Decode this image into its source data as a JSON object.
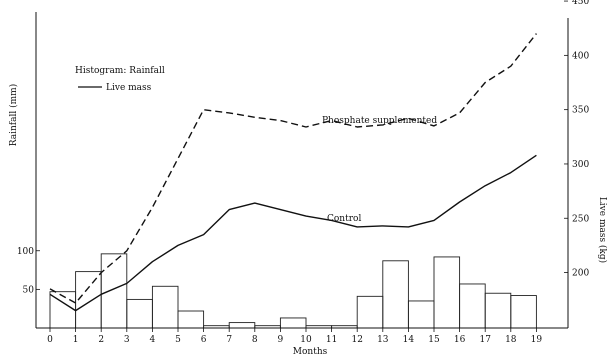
{
  "chart_data": {
    "type": "bar",
    "title": "",
    "xlabel": "Months",
    "ylabel_left": "Rainfall (mm)",
    "ylabel_right": "Live mass (kg)",
    "x": [
      0,
      1,
      2,
      3,
      4,
      5,
      6,
      7,
      8,
      9,
      10,
      11,
      12,
      13,
      14,
      15,
      16,
      17,
      18,
      19
    ],
    "x_tick_labels": [
      "0",
      "1",
      "2",
      "3",
      "4",
      "5",
      "6",
      "7",
      "8",
      "9",
      "10",
      "11",
      "12",
      "13",
      "14",
      "15",
      "16",
      "17",
      "18",
      "19"
    ],
    "left_ticks": [
      {
        "value": 50,
        "label": "50"
      },
      {
        "value": 100,
        "label": "100"
      }
    ],
    "right_ticks": [
      {
        "value": 200,
        "label": "200"
      },
      {
        "value": 250,
        "label": "250"
      },
      {
        "value": 300,
        "label": "300"
      },
      {
        "value": 350,
        "label": "350"
      },
      {
        "value": 400,
        "label": "400"
      },
      {
        "value": 450,
        "label": "450"
      }
    ],
    "left_ylim": [
      0,
      140
    ],
    "right_ylim": [
      150,
      450
    ],
    "rainfall": {
      "name": "Rainfall",
      "style": "histogram",
      "months": [
        0,
        1,
        2,
        3,
        4,
        5,
        6,
        7,
        8,
        9,
        10,
        11,
        12,
        13,
        14,
        15,
        16,
        17,
        18
      ],
      "values": [
        47,
        73,
        96,
        37,
        54,
        22,
        3,
        7,
        3,
        13,
        3,
        3,
        41,
        87,
        35,
        92,
        57,
        45,
        42
      ]
    },
    "series": [
      {
        "name": "Phosphate supplemented",
        "style": "dashed",
        "x": [
          0,
          1,
          2,
          3,
          4,
          5,
          6,
          7,
          8,
          9,
          10,
          11,
          12,
          13,
          14,
          15,
          16,
          17,
          18,
          19
        ],
        "values": [
          185,
          172,
          200,
          220,
          260,
          305,
          350,
          347,
          343,
          340,
          334,
          340,
          334,
          336,
          342,
          335,
          347,
          375,
          390,
          420
        ]
      },
      {
        "name": "Control",
        "style": "solid",
        "x": [
          0,
          1,
          2,
          3,
          4,
          5,
          6,
          7,
          8,
          9,
          10,
          11,
          12,
          13,
          14,
          15,
          16,
          17,
          18,
          19
        ],
        "values": [
          180,
          165,
          180,
          190,
          210,
          225,
          235,
          258,
          264,
          258,
          252,
          248,
          242,
          243,
          242,
          248,
          265,
          280,
          292,
          308
        ]
      }
    ],
    "legend": {
      "items": [
        {
          "label": "Histogram: Rainfall",
          "style": "histogram"
        },
        {
          "label": "Live mass",
          "style": "line"
        }
      ],
      "placement": "top-left"
    },
    "annotations": {
      "phosphate": "Phosphate supplemented",
      "control": "Control"
    },
    "grid": false
  }
}
